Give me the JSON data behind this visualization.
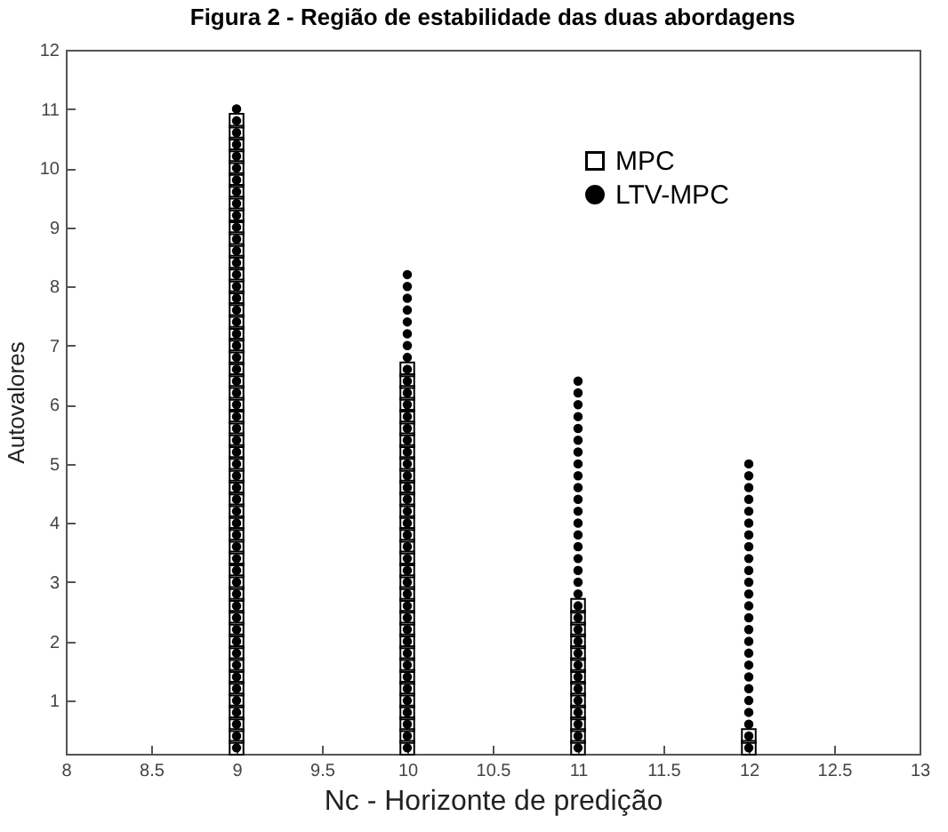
{
  "chart_data": {
    "type": "scatter",
    "title": "Figura 2 - Região de estabilidade das duas abordagens",
    "xlabel": "Nc - Horizonte de predição",
    "ylabel": "Autovalores",
    "xlim": [
      8,
      13
    ],
    "xticks": [
      8,
      8.5,
      9,
      9.5,
      10,
      10.5,
      11,
      11.5,
      12,
      12.5,
      13
    ],
    "ylim": [
      0.1,
      12
    ],
    "yticks": [
      1,
      2,
      3,
      4,
      5,
      6,
      7,
      8,
      9,
      10,
      11,
      12
    ],
    "grid": false,
    "legend": "top right",
    "series": [
      {
        "name": "MPC",
        "color": "#000000",
        "marker": "square",
        "x": [
          9,
          9,
          9,
          9,
          9,
          9,
          9,
          9,
          9,
          9,
          9,
          9,
          9,
          9,
          9,
          9,
          9,
          9,
          9,
          9,
          9,
          9,
          9,
          9,
          9,
          9,
          9,
          9,
          9,
          9,
          9,
          9,
          9,
          9,
          9,
          9,
          9,
          9,
          9,
          9,
          9,
          9,
          9,
          9,
          9,
          9,
          9,
          9,
          9,
          9,
          9,
          9,
          9,
          9,
          10,
          10,
          10,
          10,
          10,
          10,
          10,
          10,
          10,
          10,
          10,
          10,
          10,
          10,
          10,
          10,
          10,
          10,
          10,
          10,
          10,
          10,
          10,
          10,
          10,
          10,
          10,
          10,
          10,
          10,
          10,
          10,
          10,
          11,
          11,
          11,
          11,
          11,
          11,
          11,
          11,
          11,
          11,
          11,
          11,
          11,
          12,
          12
        ],
        "values": [
          0.2,
          0.4,
          0.6,
          0.8,
          1,
          1.2,
          1.4,
          1.6,
          1.8,
          2,
          2.2,
          2.4,
          2.6,
          2.8,
          3,
          3.2,
          3.4,
          3.6,
          3.8,
          4,
          4.2,
          4.4,
          4.6,
          4.8,
          5,
          5.2,
          5.4,
          5.6,
          5.8,
          6,
          6.2,
          6.4,
          6.6,
          6.8,
          7,
          7.2,
          7.4,
          7.6,
          7.8,
          8,
          8.2,
          8.4,
          8.6,
          8.8,
          9,
          9.2,
          9.4,
          9.6,
          9.8,
          10,
          10.2,
          10.4,
          10.6,
          10.8,
          0.2,
          0.4,
          0.6,
          0.8,
          1,
          1.2,
          1.4,
          1.6,
          1.8,
          2,
          2.2,
          2.4,
          2.6,
          2.8,
          3,
          3.2,
          3.4,
          3.6,
          3.8,
          4,
          4.2,
          4.4,
          4.6,
          4.8,
          5,
          5.2,
          5.4,
          5.6,
          5.8,
          6,
          6.2,
          6.4,
          6.6,
          0.2,
          0.4,
          0.6,
          0.8,
          1,
          1.2,
          1.4,
          1.6,
          1.8,
          2,
          2.2,
          2.4,
          2.6,
          0.2,
          0.4
        ]
      },
      {
        "name": "LTV-MPC",
        "color": "#000000",
        "marker": "circle",
        "x": [
          9,
          9,
          9,
          9,
          9,
          9,
          9,
          9,
          9,
          9,
          9,
          9,
          9,
          9,
          9,
          9,
          9,
          9,
          9,
          9,
          9,
          9,
          9,
          9,
          9,
          9,
          9,
          9,
          9,
          9,
          9,
          9,
          9,
          9,
          9,
          9,
          9,
          9,
          9,
          9,
          9,
          9,
          9,
          9,
          9,
          9,
          9,
          9,
          9,
          9,
          9,
          9,
          9,
          9,
          9,
          10,
          10,
          10,
          10,
          10,
          10,
          10,
          10,
          10,
          10,
          10,
          10,
          10,
          10,
          10,
          10,
          10,
          10,
          10,
          10,
          10,
          10,
          10,
          10,
          10,
          10,
          10,
          10,
          10,
          10,
          10,
          10,
          10,
          10,
          10,
          10,
          10,
          10,
          10,
          10,
          10,
          11,
          11,
          11,
          11,
          11,
          11,
          11,
          11,
          11,
          11,
          11,
          11,
          11,
          11,
          11,
          11,
          11,
          11,
          11,
          11,
          11,
          11,
          11,
          11,
          11,
          11,
          11,
          11,
          11,
          11,
          11,
          11,
          12,
          12,
          12,
          12,
          12,
          12,
          12,
          12,
          12,
          12,
          12,
          12,
          12,
          12,
          12,
          12,
          12,
          12,
          12,
          12,
          12,
          12,
          12,
          12,
          12
        ],
        "values": [
          0.2,
          0.4,
          0.6,
          0.8,
          1,
          1.2,
          1.4,
          1.6,
          1.8,
          2,
          2.2,
          2.4,
          2.6,
          2.8,
          3,
          3.2,
          3.4,
          3.6,
          3.8,
          4,
          4.2,
          4.4,
          4.6,
          4.8,
          5,
          5.2,
          5.4,
          5.6,
          5.8,
          6,
          6.2,
          6.4,
          6.6,
          6.8,
          7,
          7.2,
          7.4,
          7.6,
          7.8,
          8,
          8.2,
          8.4,
          8.6,
          8.8,
          9,
          9.2,
          9.4,
          9.6,
          9.8,
          10,
          10.2,
          10.4,
          10.6,
          10.8,
          11,
          0.2,
          0.4,
          0.6,
          0.8,
          1,
          1.2,
          1.4,
          1.6,
          1.8,
          2,
          2.2,
          2.4,
          2.6,
          2.8,
          3,
          3.2,
          3.4,
          3.6,
          3.8,
          4,
          4.2,
          4.4,
          4.6,
          4.8,
          5,
          5.2,
          5.4,
          5.6,
          5.8,
          6,
          6.2,
          6.4,
          6.6,
          6.8,
          7,
          7.2,
          7.4,
          7.6,
          7.8,
          8,
          8.2,
          0.2,
          0.4,
          0.6,
          0.8,
          1,
          1.2,
          1.4,
          1.6,
          1.8,
          2,
          2.2,
          2.4,
          2.6,
          2.8,
          3,
          3.2,
          3.4,
          3.6,
          3.8,
          4,
          4.2,
          4.4,
          4.6,
          4.8,
          5,
          5.2,
          5.4,
          5.6,
          5.8,
          6,
          6.2,
          6.4,
          0.2,
          0.4,
          0.6,
          0.8,
          1,
          1.2,
          1.4,
          1.6,
          1.8,
          2,
          2.2,
          2.4,
          2.6,
          2.8,
          3,
          3.2,
          3.4,
          3.6,
          3.8,
          4,
          4.2,
          4.4,
          4.6,
          4.8,
          5
        ]
      }
    ]
  }
}
